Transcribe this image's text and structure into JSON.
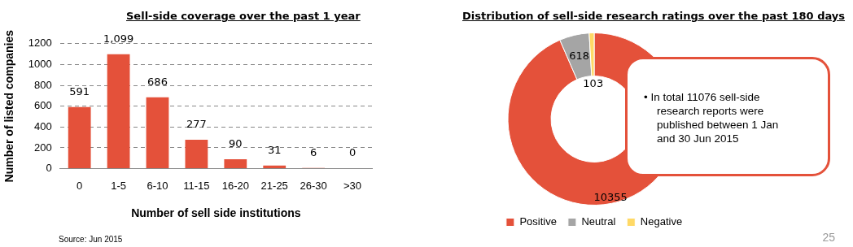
{
  "chart_data": [
    {
      "type": "bar",
      "title": "Sell-side coverage over the past 1 year",
      "xlabel": "Number of sell side institutions",
      "ylabel": "Number of listed companies",
      "categories": [
        "0",
        "1-5",
        "6-10",
        "11-15",
        "16-20",
        "21-25",
        "26-30",
        ">30"
      ],
      "values": [
        591,
        1099,
        686,
        277,
        90,
        31,
        6,
        0
      ],
      "value_labels": [
        "591",
        "1,099",
        "686",
        "277",
        "90",
        "31",
        "6",
        "0"
      ],
      "color": "#e4513a",
      "ylim": [
        0,
        1200
      ],
      "yticks": [
        0,
        200,
        400,
        600,
        800,
        1000,
        1200
      ],
      "grid": "y",
      "legend": false,
      "annotations": [
        "Source: Jun 2015"
      ]
    },
    {
      "type": "donut",
      "title": "Distribution of sell-side research ratings over the past 180 days",
      "categories": [
        "Positive",
        "Neutral",
        "Negative"
      ],
      "values": [
        10355,
        618,
        103
      ],
      "colors": [
        "#e4513a",
        "#a5a5a5",
        "#ffd966"
      ],
      "data_labels": true,
      "legend": "bottom",
      "annotations": [
        "• In total 11076 sell-side research reports were published between 1 Jan and 30 Jun 2015",
        "25"
      ]
    }
  ]
}
